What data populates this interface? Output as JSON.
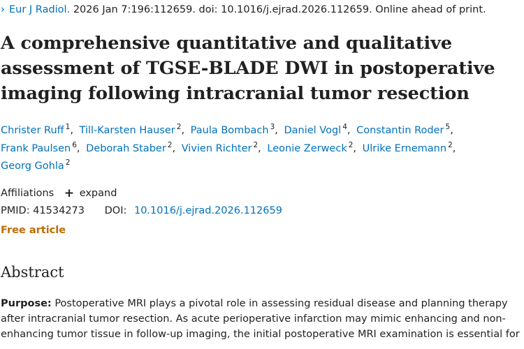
{
  "citation": {
    "journal": "Eur J Radiol.",
    "details": "2026 Jan 7:196:112659. doi: 10.1016/j.ejrad.2026.112659. Online ahead of print."
  },
  "title": "A comprehensive quantitative and qualitative assessment of TGSE-BLADE DWI in postoperative imaging following intracranial tumor resection",
  "authors": [
    {
      "name": "Christer Ruff",
      "aff": "1"
    },
    {
      "name": "Till-Karsten Hauser",
      "aff": "2"
    },
    {
      "name": "Paula Bombach",
      "aff": "3"
    },
    {
      "name": "Daniel Vogl",
      "aff": "4"
    },
    {
      "name": "Constantin Roder",
      "aff": "5"
    },
    {
      "name": "Frank Paulsen",
      "aff": "6"
    },
    {
      "name": "Deborah Staber",
      "aff": "2"
    },
    {
      "name": "Vivien Richter",
      "aff": "2"
    },
    {
      "name": "Leonie Zerweck",
      "aff": "2"
    },
    {
      "name": "Ulrike Ernemann",
      "aff": "2"
    },
    {
      "name": "Georg Gohla",
      "aff": "2"
    }
  ],
  "affiliations": {
    "label": "Affiliations",
    "expand_label": "expand"
  },
  "ids": {
    "pmid_label": "PMID:",
    "pmid": "41534273",
    "doi_label": "DOI:",
    "doi": "10.1016/j.ejrad.2026.112659"
  },
  "free_article": "Free article",
  "abstract": {
    "heading": "Abstract",
    "purpose_label": "Purpose:",
    "purpose_text": "Postoperative MRI plays a pivotal role in assessing residual disease and planning therapy after intracranial tumor resection. As acute perioperative infarction may mimic enhancing and non-enhancing tumor tissue in follow-up imaging, the initial postoperative MRI examination is essential for"
  },
  "colors": {
    "link": "#0071bc",
    "free": "#bf6b00",
    "text": "#212121"
  },
  "icons": {
    "chevron": "chevron-right-icon",
    "plus": "plus-icon"
  }
}
